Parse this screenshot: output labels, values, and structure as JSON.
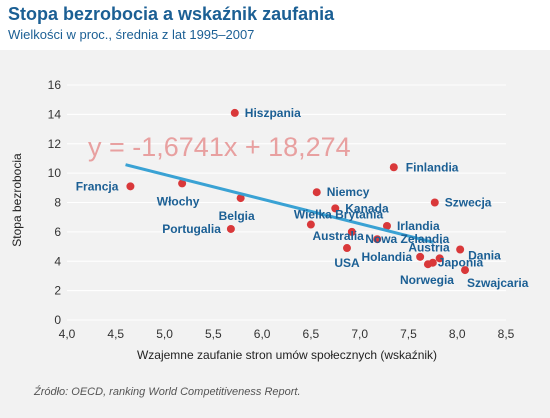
{
  "header": {
    "title": "Stopa bezrobocia a wskaźnik zaufania",
    "subtitle": "Wielkości w proc., średnia z lat 1995–2007"
  },
  "source": "Źródło: OECD, ranking World Competitiveness Report.",
  "colors": {
    "point": "#d9383a",
    "label": "#1b5f94",
    "trendline": "#3aa2d4",
    "equation": "#e8a0a0",
    "grid": "#ffffff",
    "background": "#f2f2f2"
  },
  "chart_data": {
    "type": "scatter",
    "title": "Stopa bezrobocia a wskaźnik zaufania",
    "subtitle": "Wielkości w proc., średnia z lat 1995–2007",
    "xlabel": "Wzajemne zaufanie stron umów społecznych (wskaźnik)",
    "ylabel": "Stopa bezrobocia",
    "xlim": [
      4.0,
      8.5
    ],
    "ylim": [
      0,
      16
    ],
    "xticks": [
      "4,0",
      "4,5",
      "5,0",
      "5,5",
      "6,0",
      "6,5",
      "7,0",
      "7,5",
      "8,0",
      "8,5"
    ],
    "yticks": [
      "0",
      "2",
      "4",
      "6",
      "8",
      "10",
      "12",
      "14",
      "16"
    ],
    "grid": true,
    "trendline": {
      "equation": "y = -1,6741x + 18,274",
      "slope": -1.6741,
      "intercept": 18.274,
      "x_range": [
        4.6,
        7.75
      ]
    },
    "points": [
      {
        "label": "Hiszpania",
        "x": 5.72,
        "y": 14.1
      },
      {
        "label": "Finlandia",
        "x": 7.35,
        "y": 10.4
      },
      {
        "label": "Francja",
        "x": 4.65,
        "y": 9.1
      },
      {
        "label": "Włochy",
        "x": 5.18,
        "y": 9.3
      },
      {
        "label": "Belgia",
        "x": 5.78,
        "y": 8.3
      },
      {
        "label": "Niemcy",
        "x": 6.56,
        "y": 8.7
      },
      {
        "label": "Szwecja",
        "x": 7.77,
        "y": 8.0
      },
      {
        "label": "Kanada",
        "x": 6.75,
        "y": 7.6
      },
      {
        "label": "Wielka Brytania",
        "x": 6.5,
        "y": 6.5
      },
      {
        "label": "Irlandia",
        "x": 7.28,
        "y": 6.4
      },
      {
        "label": "Portugalia",
        "x": 5.68,
        "y": 6.2
      },
      {
        "label": "Australia",
        "x": 6.92,
        "y": 6.0
      },
      {
        "label": "Nowa Zelandia",
        "x": 7.18,
        "y": 5.5
      },
      {
        "label": "USA",
        "x": 6.87,
        "y": 4.9
      },
      {
        "label": "Dania",
        "x": 8.03,
        "y": 4.8
      },
      {
        "label": "Holandia",
        "x": 7.62,
        "y": 4.3
      },
      {
        "label": "Austria",
        "x": 7.82,
        "y": 4.2
      },
      {
        "label": "Japonia",
        "x": 7.75,
        "y": 3.9
      },
      {
        "label": "Norwegia",
        "x": 7.7,
        "y": 3.8
      },
      {
        "label": "Szwajcaria",
        "x": 8.08,
        "y": 3.4
      }
    ]
  }
}
